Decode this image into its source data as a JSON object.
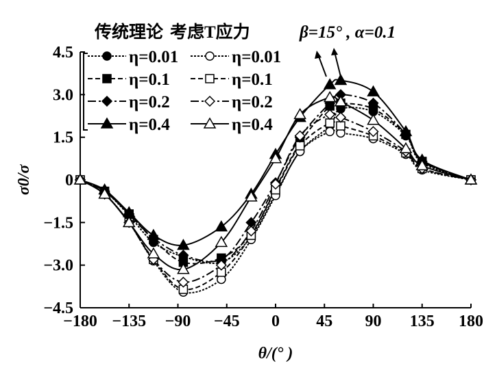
{
  "chart_data": {
    "type": "line",
    "title": "传统理论  考虑T应力    β=15° , α=0.1",
    "title_parts": {
      "left": "传统理论",
      "middle": "考虑T应力",
      "params": "β=15° , α=0.1"
    },
    "xlabel": "θ/(° )",
    "ylabel": "σ0/σ",
    "xlim": [
      -180,
      180
    ],
    "ylim": [
      -4.5,
      4.5
    ],
    "xticks": [
      -180,
      -135,
      -90,
      -45,
      0,
      45,
      90,
      135,
      180
    ],
    "xtick_labels": [
      "−180",
      "−135",
      "−90",
      "−45",
      "0",
      "45",
      "90",
      "135",
      "180"
    ],
    "yticks": [
      4.5,
      3.0,
      1.5,
      0,
      -1.5,
      -3.0,
      -4.5
    ],
    "ytick_labels": [
      "4.5",
      "3.0",
      "1.5",
      "0",
      "−1.5",
      "−3.0",
      "−4.5"
    ],
    "legend_position": "top-left",
    "grid": false,
    "x": [
      -180,
      -157.5,
      -135,
      -112.5,
      -85,
      -50,
      -22.5,
      0,
      22.5,
      50,
      60,
      90,
      120,
      135,
      180
    ],
    "series": [
      {
        "name": "η=0.01",
        "group": "传统理论",
        "marker": "circle-filled",
        "line": "dotted",
        "values": [
          0,
          -0.4,
          -1.25,
          -2.2,
          -2.7,
          -2.9,
          -2.0,
          -0.5,
          1.0,
          1.9,
          2.5,
          2.4,
          1.55,
          0.6,
          0
        ]
      },
      {
        "name": "η=0.01",
        "group": "考虑T应力",
        "marker": "circle-open",
        "line": "dotted",
        "values": [
          0,
          -0.5,
          -1.5,
          -2.85,
          -3.95,
          -3.5,
          -2.1,
          -0.55,
          1.0,
          1.7,
          1.65,
          1.45,
          0.9,
          0.35,
          0
        ]
      },
      {
        "name": "η=0.1",
        "group": "传统理论",
        "marker": "square-filled",
        "line": "dashed",
        "values": [
          0,
          -0.4,
          -1.2,
          -2.1,
          -2.9,
          -2.75,
          -1.9,
          -0.3,
          1.3,
          2.6,
          2.7,
          2.5,
          1.6,
          0.65,
          0
        ]
      },
      {
        "name": "η=0.1",
        "group": "考虑T应力",
        "marker": "square-open",
        "line": "dashed",
        "values": [
          0,
          -0.5,
          -1.5,
          -2.8,
          -3.85,
          -3.25,
          -1.95,
          -0.35,
          1.2,
          2.0,
          1.9,
          1.55,
          0.95,
          0.4,
          0
        ]
      },
      {
        "name": "η=0.2",
        "group": "传统理论",
        "marker": "diamond-filled",
        "line": "longdash",
        "values": [
          0,
          -0.4,
          -1.2,
          -2.05,
          -2.65,
          -2.8,
          -1.5,
          -0.1,
          1.5,
          2.7,
          3.0,
          2.7,
          1.6,
          0.65,
          0
        ]
      },
      {
        "name": "η=0.2",
        "group": "考虑T应力",
        "marker": "diamond-open",
        "line": "longdash",
        "values": [
          0,
          -0.5,
          -1.5,
          -2.8,
          -3.6,
          -3.0,
          -1.8,
          -0.15,
          1.55,
          2.3,
          2.2,
          1.7,
          1.0,
          0.4,
          0
        ]
      },
      {
        "name": "η=0.4",
        "group": "传统理论",
        "marker": "triangle-filled",
        "line": "solid",
        "values": [
          0,
          -0.35,
          -1.15,
          -1.95,
          -2.3,
          -1.65,
          -0.5,
          0.9,
          2.2,
          3.35,
          3.5,
          3.1,
          1.7,
          0.7,
          0
        ]
      },
      {
        "name": "η=0.4",
        "group": "考虑T应力",
        "marker": "triangle-open",
        "line": "solid",
        "values": [
          0,
          -0.5,
          -1.5,
          -2.6,
          -3.15,
          -2.2,
          -0.6,
          0.75,
          2.3,
          2.9,
          2.75,
          2.1,
          1.1,
          0.5,
          0
        ]
      }
    ]
  }
}
